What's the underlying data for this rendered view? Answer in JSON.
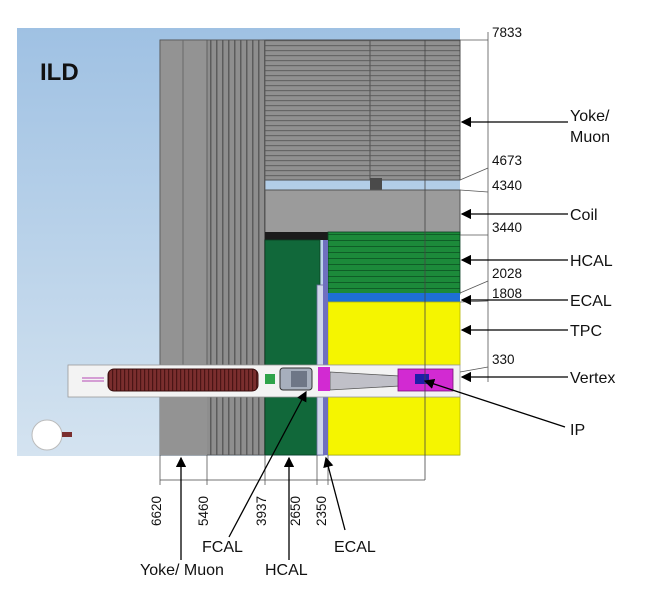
{
  "title": "ILD",
  "right_labels": [
    {
      "id": "yoke",
      "lines": [
        "Yoke/",
        "Muon"
      ]
    },
    {
      "id": "coil",
      "lines": [
        "Coil"
      ]
    },
    {
      "id": "hcal",
      "lines": [
        "HCAL"
      ]
    },
    {
      "id": "ecal",
      "lines": [
        "ECAL"
      ]
    },
    {
      "id": "tpc",
      "lines": [
        "TPC"
      ]
    },
    {
      "id": "vertex",
      "lines": [
        "Vertex"
      ]
    },
    {
      "id": "ip",
      "lines": [
        "IP"
      ]
    }
  ],
  "radial_dimensions": [
    "7833",
    "4673",
    "4340",
    "3440",
    "2028",
    "1808",
    "330"
  ],
  "axial_dimensions": [
    "6620",
    "5460",
    "3937",
    "2650",
    "2350"
  ],
  "bottom_labels": [
    {
      "id": "fcal",
      "text": "FCAL"
    },
    {
      "id": "ecal",
      "text": "ECAL"
    },
    {
      "id": "yoke-muon",
      "text": "Yoke/ Muon"
    },
    {
      "id": "hcal",
      "text": "HCAL"
    }
  ],
  "colors": {
    "sky": "#a9c8e4",
    "yoke": "#8c8c8c",
    "coil": "#9a9a9a",
    "hcal_barrel": "#1c8a3a",
    "hcal_endcap": "#11683a",
    "ecal": "#1e6fd6",
    "tpc": "#f5f500",
    "vertex": "#d22ad2"
  }
}
